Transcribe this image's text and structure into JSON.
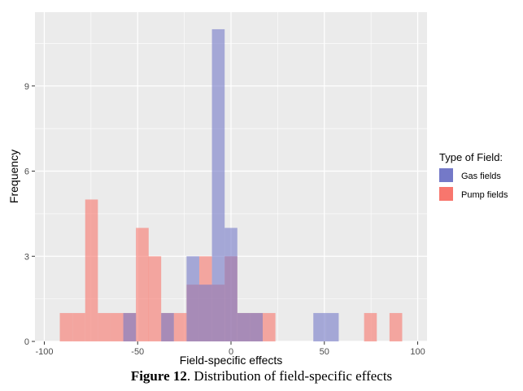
{
  "chart_data": {
    "type": "bar",
    "title": "",
    "xlabel": "Field-specific effects",
    "ylabel": "Frequency",
    "xlim": [
      -105,
      105
    ],
    "ylim": [
      0,
      11.6
    ],
    "xticks": [
      -100,
      -50,
      0,
      50,
      100
    ],
    "yticks": [
      0,
      3,
      6,
      9
    ],
    "bin_width": 6.8,
    "legend_title": "Type of Field:",
    "legend_position": "right",
    "grid": true,
    "series": [
      {
        "name": "Gas fields",
        "color": "#7479c8",
        "bins": [
          {
            "x": -54.3,
            "count": 1
          },
          {
            "x": -34.0,
            "count": 1
          },
          {
            "x": -20.4,
            "count": 3
          },
          {
            "x": -13.6,
            "count": 2
          },
          {
            "x": -6.8,
            "count": 11
          },
          {
            "x": 0.0,
            "count": 4
          },
          {
            "x": 6.8,
            "count": 1
          },
          {
            "x": 13.6,
            "count": 1
          },
          {
            "x": 47.5,
            "count": 1
          },
          {
            "x": 54.3,
            "count": 1
          }
        ]
      },
      {
        "name": "Pump fields",
        "color": "#f8766d",
        "bins": [
          {
            "x": -88.3,
            "count": 1
          },
          {
            "x": -81.5,
            "count": 1
          },
          {
            "x": -74.7,
            "count": 5
          },
          {
            "x": -67.9,
            "count": 1
          },
          {
            "x": -61.1,
            "count": 1
          },
          {
            "x": -54.3,
            "count": 1
          },
          {
            "x": -47.5,
            "count": 4
          },
          {
            "x": -40.8,
            "count": 3
          },
          {
            "x": -34.0,
            "count": 1
          },
          {
            "x": -27.2,
            "count": 1
          },
          {
            "x": -20.4,
            "count": 2
          },
          {
            "x": -13.6,
            "count": 3
          },
          {
            "x": -6.8,
            "count": 2
          },
          {
            "x": 0.0,
            "count": 3
          },
          {
            "x": 6.8,
            "count": 1
          },
          {
            "x": 13.6,
            "count": 1
          },
          {
            "x": 20.4,
            "count": 1
          },
          {
            "x": 74.7,
            "count": 1
          },
          {
            "x": 88.3,
            "count": 1
          }
        ]
      }
    ]
  },
  "caption": {
    "label": "Figure 12",
    "text": ". Distribution of field-specific effects"
  }
}
